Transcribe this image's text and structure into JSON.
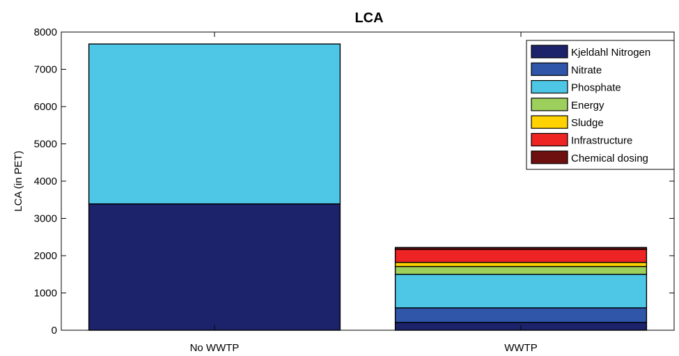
{
  "chart_data": {
    "type": "bar",
    "stacked": true,
    "title": "LCA",
    "xlabel": "",
    "ylabel": "LCA (in PET)",
    "ylim": [
      0,
      8000
    ],
    "yticks": [
      0,
      1000,
      2000,
      3000,
      4000,
      5000,
      6000,
      7000,
      8000
    ],
    "categories": [
      "No WWTP",
      "WWTP"
    ],
    "legend_position": "top-right",
    "grid": false,
    "series": [
      {
        "name": "Kjeldahl Nitrogen",
        "color": "#1c236b",
        "values": [
          3390,
          210
        ]
      },
      {
        "name": "Nitrate",
        "color": "#2f56a8",
        "values": [
          0,
          390
        ]
      },
      {
        "name": "Phosphate",
        "color": "#4ec7e6",
        "values": [
          4290,
          900
        ]
      },
      {
        "name": "Energy",
        "color": "#9ccf5c",
        "values": [
          0,
          210
        ]
      },
      {
        "name": "Sludge",
        "color": "#ffd200",
        "values": [
          0,
          110
        ]
      },
      {
        "name": "Infrastructure",
        "color": "#ee2424",
        "values": [
          0,
          350
        ]
      },
      {
        "name": "Chemical dosing",
        "color": "#6e1010",
        "values": [
          0,
          50
        ]
      }
    ]
  }
}
